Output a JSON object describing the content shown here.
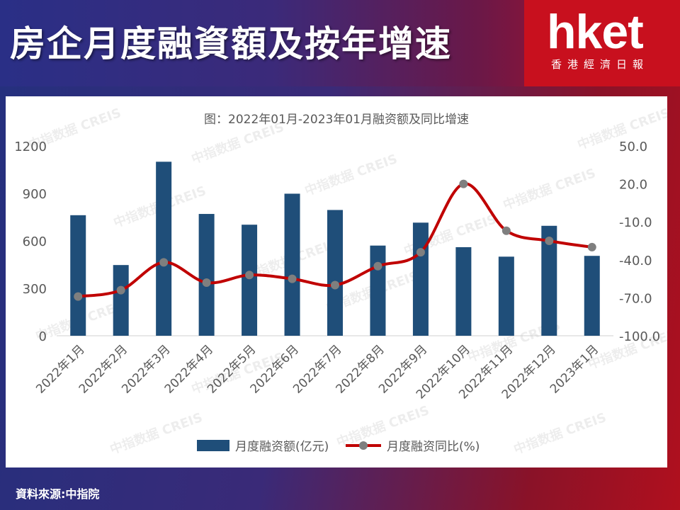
{
  "header": {
    "title": "房企月度融資額及按年增速",
    "logo_text": "hket",
    "logo_subtitle": "香港經濟日報"
  },
  "footer": {
    "source": "資料來源:中指院"
  },
  "watermark": "中指数据 CREIS",
  "colors": {
    "bar": "#1f4e79",
    "line": "#c00000",
    "marker": "#7f7f7f"
  },
  "chart_data": {
    "type": "bar",
    "title": "图：2022年01月-2023年01月融资额及同比增速",
    "categories": [
      "2022年1月",
      "2022年2月",
      "2022年3月",
      "2022年4月",
      "2022年5月",
      "2022年6月",
      "2022年7月",
      "2022年8月",
      "2022年9月",
      "2022年10月",
      "2022年11月",
      "2022年12月",
      "2023年1月"
    ],
    "series": [
      {
        "name": "月度融资额(亿元)",
        "type": "bar",
        "axis": "left",
        "values": [
          762,
          447,
          1100,
          770,
          702,
          898,
          795,
          570,
          715,
          560,
          500,
          695,
          505
        ]
      },
      {
        "name": "月度融资同比(%)",
        "type": "line",
        "axis": "right",
        "values": [
          -69,
          -64,
          -42,
          -58,
          -52,
          -55,
          -60,
          -45,
          -34,
          20,
          -17,
          -25,
          -30
        ]
      }
    ],
    "left_axis": {
      "ylim": [
        0,
        1200
      ],
      "ticks": [
        "0",
        "300",
        "600",
        "900",
        "1200"
      ]
    },
    "right_axis": {
      "ylim": [
        -100,
        50
      ],
      "ticks": [
        "-100.0",
        "-70.0",
        "-40.0",
        "-10.0",
        "20.0",
        "50.0"
      ]
    },
    "legend_position": "bottom",
    "grid": false
  }
}
